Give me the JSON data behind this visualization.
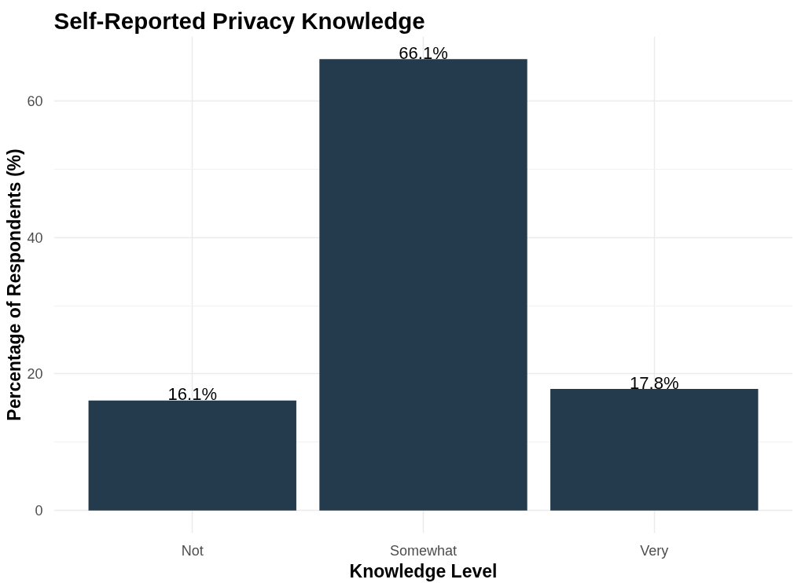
{
  "chart_data": {
    "type": "bar",
    "title": "Self-Reported Privacy Knowledge",
    "xlabel": "Knowledge Level",
    "ylabel": "Percentage of Respondents (%)",
    "categories": [
      "Not",
      "Somewhat",
      "Very"
    ],
    "values": [
      16.1,
      66.1,
      17.8
    ],
    "color": "#233b4d",
    "value_labels": [
      "16.1%",
      "66.1%",
      "17.8%"
    ],
    "ylim": [
      -3.3,
      69.4
    ],
    "yticks": [
      0,
      20,
      40,
      60
    ],
    "grid": true
  }
}
